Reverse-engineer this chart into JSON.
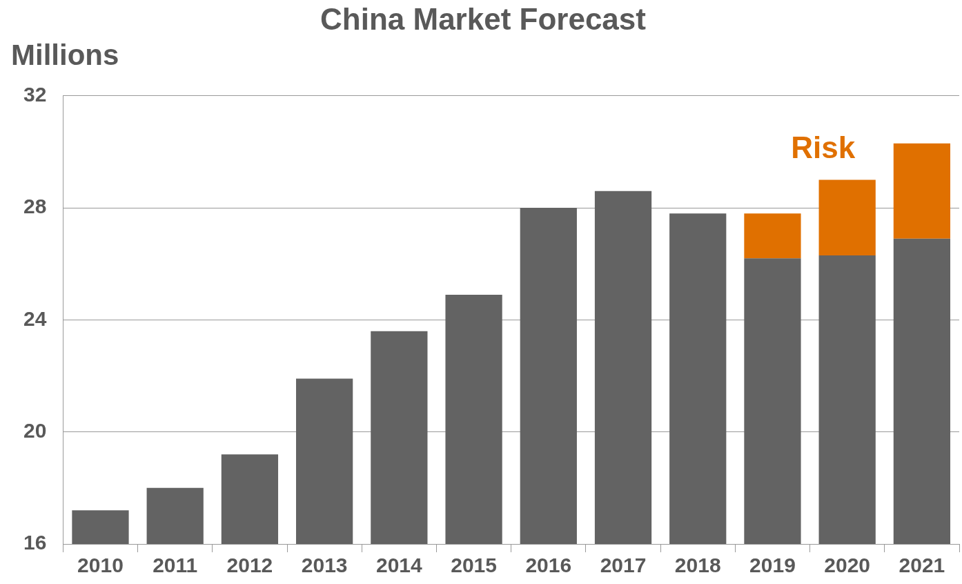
{
  "chart_data": {
    "type": "bar",
    "title": "China Market Forecast",
    "ylabel": "Millions",
    "categories": [
      "2010",
      "2011",
      "2012",
      "2013",
      "2014",
      "2015",
      "2016",
      "2017",
      "2018",
      "2019",
      "2020",
      "2021"
    ],
    "series": [
      {
        "color": "#636363",
        "values": [
          17.2,
          18.0,
          19.2,
          21.9,
          23.6,
          24.9,
          28.0,
          28.6,
          27.8,
          26.2,
          26.3,
          26.9
        ]
      },
      {
        "name": "Risk",
        "color": "#e07000",
        "values": [
          null,
          null,
          null,
          null,
          null,
          null,
          null,
          null,
          null,
          1.6,
          2.7,
          3.4
        ],
        "base": [
          null,
          null,
          null,
          null,
          null,
          null,
          null,
          null,
          null,
          26.2,
          26.3,
          26.9
        ]
      }
    ],
    "ylim": [
      16,
      32
    ],
    "yticks": [
      16,
      20,
      24,
      28,
      32
    ],
    "grid": "y",
    "legend": false
  }
}
